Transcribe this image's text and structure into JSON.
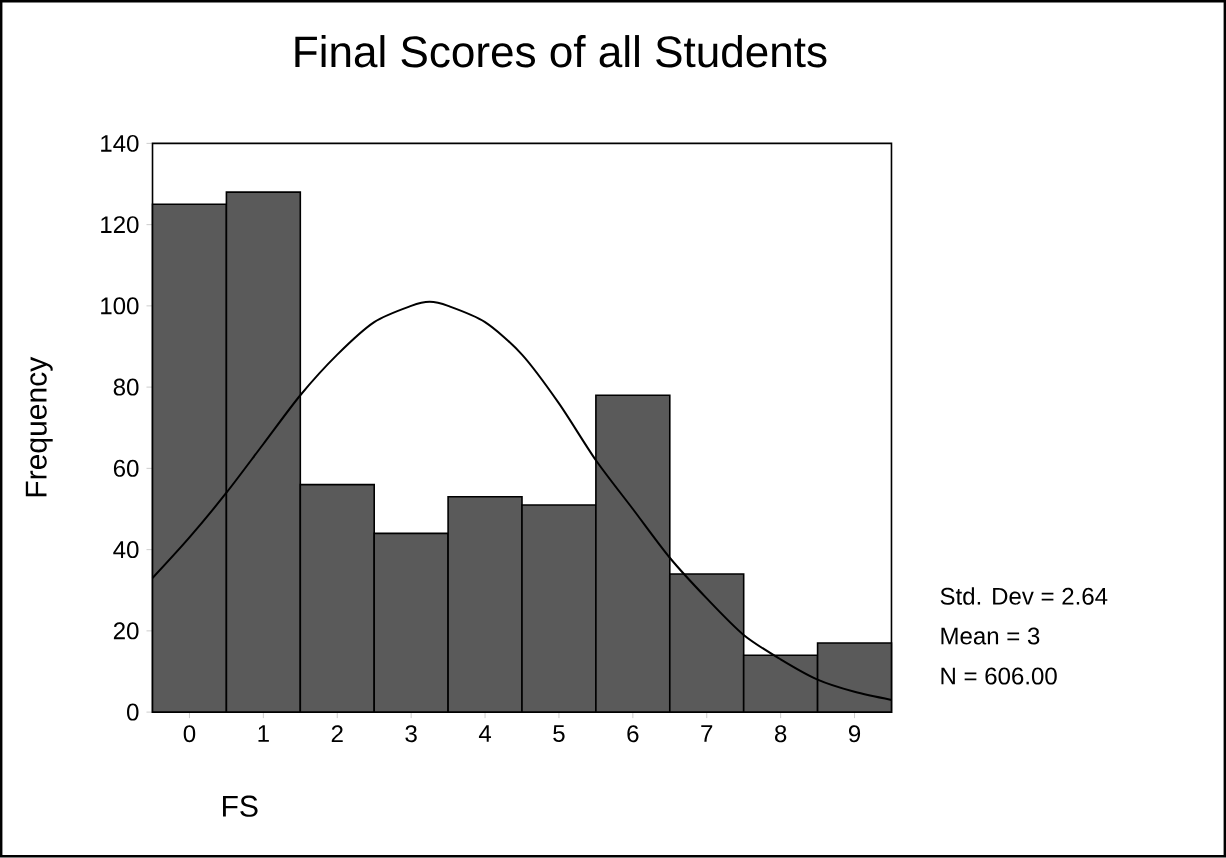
{
  "chart_data": {
    "type": "histogram",
    "title": "Final Scores of all Students",
    "xlabel": "FS",
    "ylabel": "Frequency",
    "bins": [
      -0.5,
      0.5,
      1.5,
      2.5,
      3.5,
      4.5,
      5.5,
      6.5,
      7.5,
      8.5,
      9.5
    ],
    "series": [
      {
        "color": "#5a5a5a",
        "values": [
          125,
          128,
          56,
          44,
          53,
          51,
          78,
          34,
          14,
          17
        ]
      },
      {
        "type": "line",
        "color": "#000000",
        "x": [
          -0.5,
          0,
          0.5,
          1,
          1.5,
          2,
          2.5,
          3,
          3.25,
          3.5,
          4,
          4.5,
          5,
          5.5,
          6,
          6.5,
          7,
          7.5,
          8,
          8.5,
          9,
          9.5
        ],
        "values": [
          33,
          43,
          54,
          66,
          78,
          88,
          96,
          100,
          101,
          100,
          96,
          88,
          76,
          62,
          50,
          38,
          28,
          19,
          13,
          8,
          5,
          3
        ]
      }
    ],
    "xlim": [
      -0.5,
      9.5
    ],
    "ylim": [
      0,
      140
    ],
    "xticks": [
      0,
      1,
      2,
      3,
      4,
      5,
      6,
      7,
      8,
      9
    ],
    "yticks": [
      0,
      20,
      40,
      60,
      80,
      100,
      120,
      140
    ],
    "annotations": [
      "Std. Dev = 2.64",
      "Mean = 3",
      "N = 606.00"
    ],
    "grid": false
  }
}
